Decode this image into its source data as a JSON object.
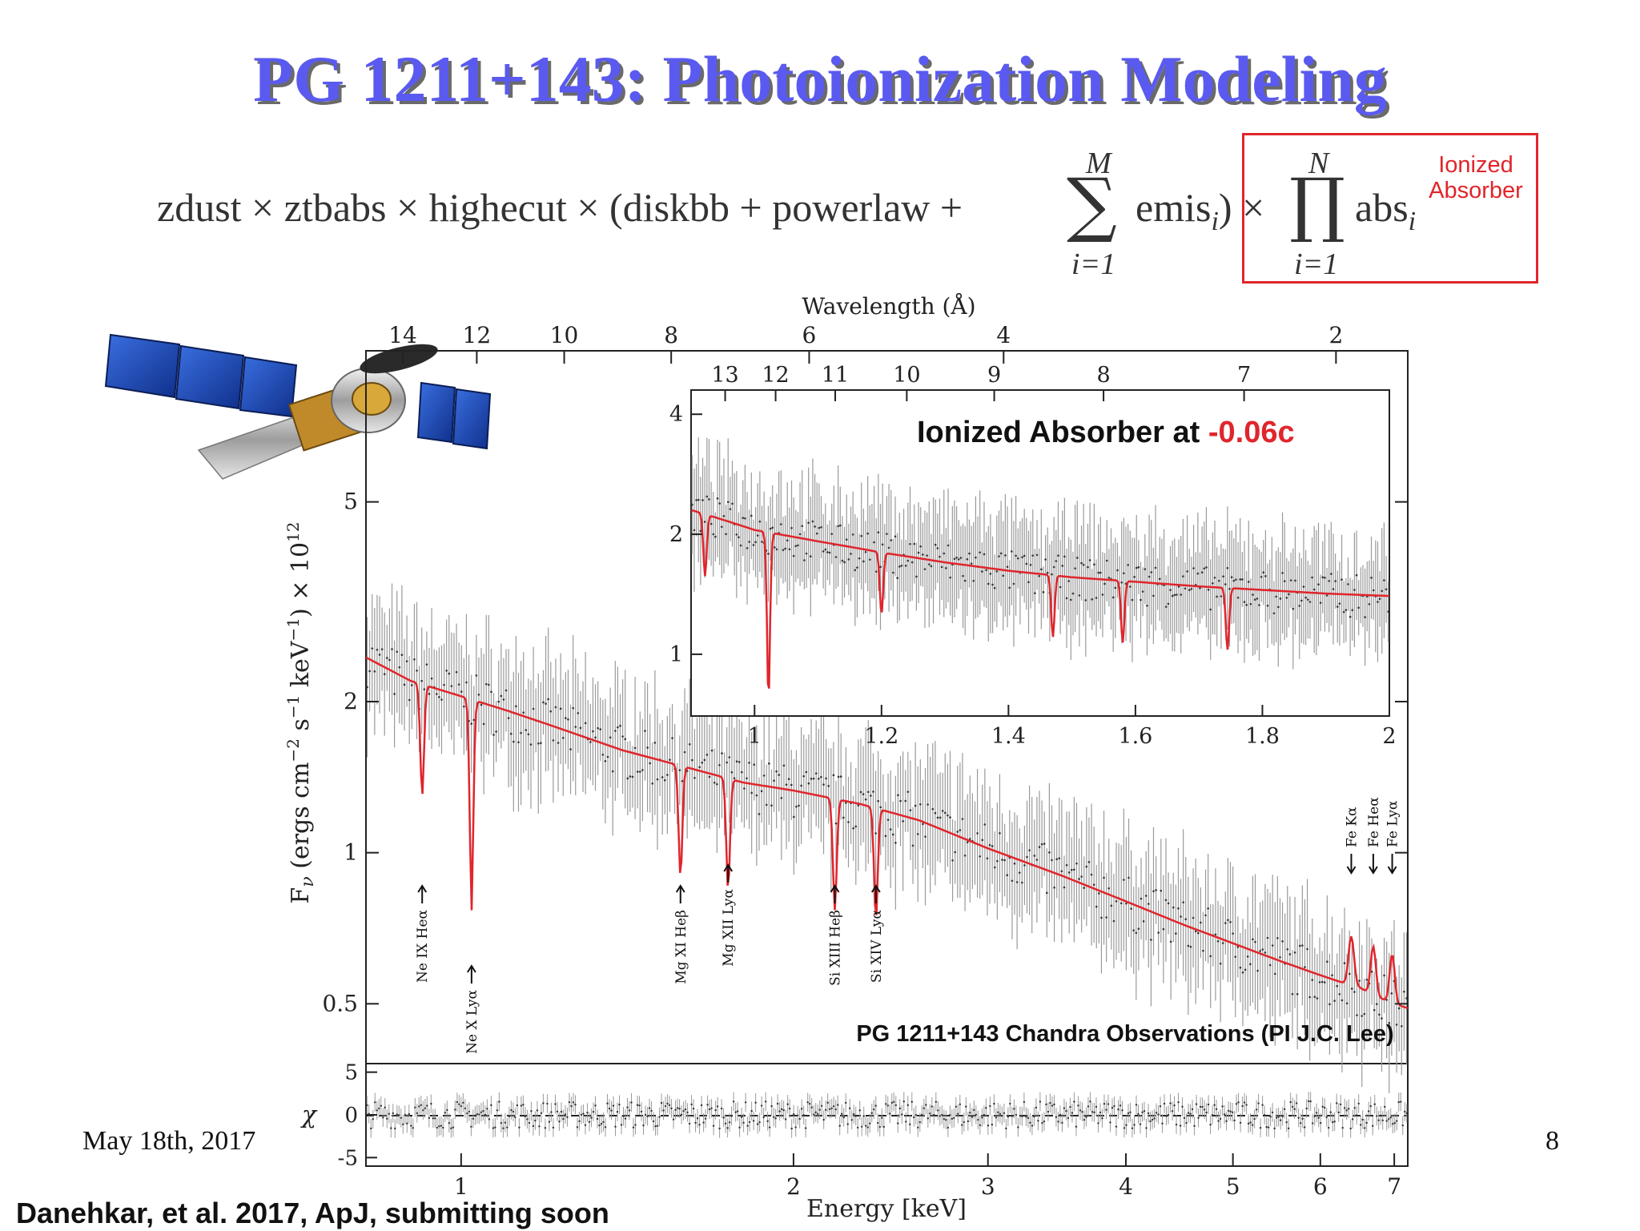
{
  "slide": {
    "title": "PG 1211+143: Photoionization Modeling",
    "date": "May 18th, 2017",
    "page_number": "8",
    "citation": "Danehkar, et al. 2017, ApJ, submitting soon"
  },
  "formula": {
    "left_part": "zdust × ztbabs × highecut × (diskbb + powerlaw +",
    "sum_upper": "M",
    "sum_lower": "i=1",
    "emis_term": "emis",
    "emis_sub": "i",
    "close_times": ") ×",
    "prod_upper": "N",
    "prod_lower": "i=1",
    "abs_term": "abs",
    "abs_sub": "i",
    "box_label_line1": "Ionized",
    "box_label_line2": "Absorber",
    "box_color": "#e0252b"
  },
  "colors": {
    "model": "#e0252b",
    "data": "#9a9a9a",
    "title": "#5a5af0"
  },
  "icons": {
    "satellite": "chandra-satellite-icon"
  },
  "chart_data": [
    {
      "type": "line",
      "role": "main-spectrum",
      "xlabel": "Energy [keV]",
      "ylabel": "F",
      "ylabel_sub": "ν",
      "ylabel_units": " (ergs cm",
      "ylabel_units_sup1": "−2",
      "ylabel_units_mid": " s",
      "ylabel_units_sup2": "−1",
      "ylabel_units_mid2": " keV",
      "ylabel_units_sup3": "−1",
      "ylabel_units_end": ") × 10",
      "ylabel_units_sup4": "12",
      "top_axis_label": "Wavelength (Å)",
      "x_scale": "log",
      "y_scale": "log",
      "xlim": [
        0.82,
        7.2
      ],
      "ylim": [
        0.38,
        10
      ],
      "x_ticks": [
        1,
        2,
        3,
        4,
        5,
        6,
        7
      ],
      "y_ticks": [
        0.5,
        1,
        2,
        5
      ],
      "top_ticks_angstrom": [
        14,
        12,
        10,
        8,
        6,
        4,
        2
      ],
      "annotation": "PG 1211+143 Chandra Observations (PI J.C. Lee)",
      "model": {
        "name": "",
        "x": [
          0.82,
          0.9,
          1.0,
          1.1,
          1.2,
          1.4,
          1.6,
          1.8,
          2.0,
          2.3,
          2.6,
          3.0,
          3.5,
          4.0,
          4.5,
          5.0,
          5.5,
          6.0,
          6.3,
          6.5,
          6.7,
          7.0,
          7.2
        ],
        "y": [
          2.45,
          2.2,
          2.05,
          1.92,
          1.8,
          1.6,
          1.48,
          1.38,
          1.33,
          1.25,
          1.16,
          1.02,
          0.9,
          0.8,
          0.72,
          0.66,
          0.61,
          0.57,
          0.55,
          0.54,
          0.52,
          0.5,
          0.49
        ]
      },
      "line_markers": [
        {
          "label": "Ne IX Heα",
          "energy": 0.922,
          "dir": "up",
          "label_pos": "below"
        },
        {
          "label": "Ne X Lyα",
          "energy": 1.022,
          "dir": "up",
          "label_pos": "below-low"
        },
        {
          "label": "Mg XI Heβ",
          "energy": 1.58,
          "dir": "up",
          "label_pos": "below"
        },
        {
          "label": "Mg XII Lyα",
          "energy": 1.745,
          "dir": "up",
          "label_pos": "below-mid"
        },
        {
          "label": "Si XIII Heβ",
          "energy": 2.18,
          "dir": "up",
          "label_pos": "below"
        },
        {
          "label": "Si XIV Lyα",
          "energy": 2.375,
          "dir": "up",
          "label_pos": "below"
        },
        {
          "label": "Fe Kα",
          "energy": 6.4,
          "dir": "down",
          "label_pos": "above"
        },
        {
          "label": "Fe Heα",
          "energy": 6.7,
          "dir": "down",
          "label_pos": "above"
        },
        {
          "label": "Fe Lyα",
          "energy": 6.97,
          "dir": "down",
          "label_pos": "above"
        }
      ]
    },
    {
      "type": "line",
      "role": "inset-zoom",
      "title": "Ionized Absorber at ",
      "title_value": "-0.06c",
      "x_scale": "linear",
      "y_scale": "log",
      "xlim": [
        0.9,
        2.0
      ],
      "ylim": [
        0.7,
        4.6
      ],
      "x_ticks": [
        1,
        1.2,
        1.4,
        1.6,
        1.8,
        2
      ],
      "x_tick_labels": [
        "1",
        "1.2",
        "1.4",
        "1.6",
        "1.8",
        "2"
      ],
      "y_ticks": [
        1,
        2,
        4
      ],
      "top_ticks_angstrom": [
        13,
        12,
        11,
        10,
        9,
        8,
        7
      ],
      "model": {
        "name": "",
        "x": [
          0.9,
          1.0,
          1.1,
          1.2,
          1.3,
          1.4,
          1.5,
          1.6,
          1.7,
          1.8,
          1.9,
          2.0
        ],
        "y": [
          2.3,
          2.05,
          1.92,
          1.8,
          1.7,
          1.62,
          1.56,
          1.52,
          1.48,
          1.45,
          1.42,
          1.4
        ]
      }
    },
    {
      "type": "scatter",
      "role": "residuals",
      "ylabel": "χ",
      "x_scale": "log",
      "xlim": [
        0.82,
        7.2
      ],
      "ylim": [
        -6,
        6
      ],
      "y_ticks": [
        -5,
        0,
        5
      ],
      "reference_line": 0
    }
  ]
}
